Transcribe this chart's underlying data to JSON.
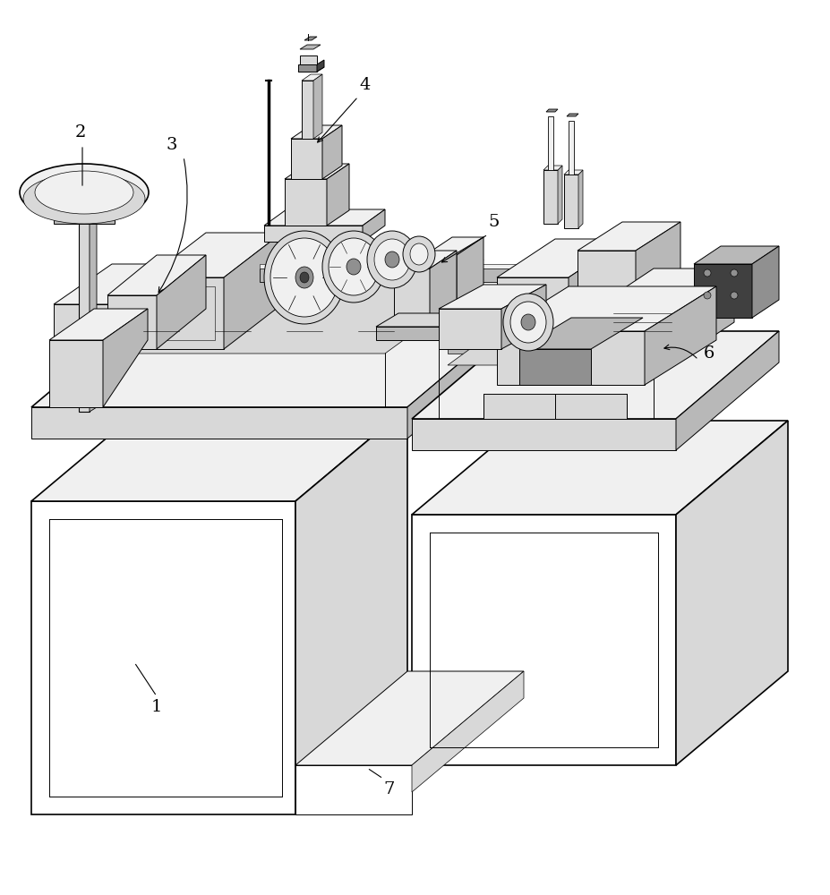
{
  "bg_color": "#ffffff",
  "lc": "#000000",
  "lw": 0.7,
  "lw_thick": 1.2,
  "face_white": "#ffffff",
  "face_light": "#f0f0f0",
  "face_mid": "#d8d8d8",
  "face_dark": "#b8b8b8",
  "face_darker": "#909090",
  "face_black": "#404040",
  "figsize": [
    9.27,
    10.0
  ],
  "dpi": 100
}
